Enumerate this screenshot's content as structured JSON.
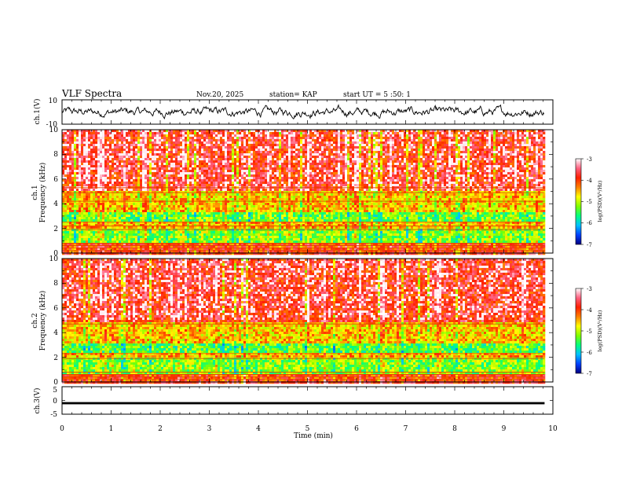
{
  "header": {
    "title": "VLF Spectra",
    "date": "Nov.20, 2025",
    "station": "station= KAP",
    "start": "start  UT =  5 :50: 1"
  },
  "chart_data": {
    "type": "heatmap",
    "time_axis": {
      "label": "Time (min)",
      "range": [
        0,
        10
      ],
      "ticks": [
        "0",
        "1",
        "2",
        "3",
        "4",
        "5",
        "6",
        "7",
        "8",
        "9",
        "10"
      ],
      "data_end": 9.83
    },
    "waveform_ch1": {
      "ylabel": "ch.1(V)",
      "ylim": [
        -10,
        10
      ],
      "tick_labels": [
        "10",
        "-10"
      ],
      "typical_range": [
        -6,
        6
      ]
    },
    "spectrogram_ch1": {
      "ylabel_line1": "ch.1",
      "ylabel_line2": "Frequency (kHz)",
      "ylim": [
        0,
        10
      ],
      "tick_labels": [
        "0",
        "2",
        "4",
        "6",
        "8",
        "10"
      ],
      "horizontal_lines_khz": [
        0.2,
        0.4,
        0.6,
        0.8,
        1.9,
        2.2,
        2.5,
        4.2,
        4.9,
        5.3
      ],
      "dominant_levels": [
        {
          "from_khz": 0,
          "to_khz": 0.9,
          "log_psd": -4.0
        },
        {
          "from_khz": 0.9,
          "to_khz": 2.0,
          "log_psd": -5.2
        },
        {
          "from_khz": 2.0,
          "to_khz": 2.5,
          "log_psd": -4.5
        },
        {
          "from_khz": 2.5,
          "to_khz": 3.4,
          "log_psd": -5.3
        },
        {
          "from_khz": 3.4,
          "to_khz": 5.0,
          "log_psd": -4.6
        },
        {
          "from_khz": 5.0,
          "to_khz": 10.0,
          "log_psd": -3.8
        }
      ]
    },
    "spectrogram_ch2": {
      "ylabel_line1": "ch.2",
      "ylabel_line2": "Frequency (kHz)",
      "ylim": [
        0,
        10
      ],
      "tick_labels": [
        "0",
        "2",
        "4",
        "6",
        "8",
        "10"
      ],
      "horizontal_lines_khz": [
        0.2,
        0.4,
        0.6,
        0.8,
        1.9,
        2.3,
        4.7
      ],
      "dominant_levels": [
        {
          "from_khz": 0,
          "to_khz": 0.6,
          "log_psd": -4.0
        },
        {
          "from_khz": 0.6,
          "to_khz": 1.9,
          "log_psd": -5.2
        },
        {
          "from_khz": 1.9,
          "to_khz": 2.3,
          "log_psd": -4.5
        },
        {
          "from_khz": 2.3,
          "to_khz": 3.1,
          "log_psd": -5.4
        },
        {
          "from_khz": 3.1,
          "to_khz": 4.8,
          "log_psd": -4.6
        },
        {
          "from_khz": 4.8,
          "to_khz": 10.0,
          "log_psd": -3.8
        }
      ]
    },
    "colorbar": {
      "label": "log(PSD)(V²/Hz)",
      "range": [
        -7,
        -3
      ],
      "tick_labels": [
        "-3",
        "-4",
        "-5",
        "-6",
        "-7"
      ],
      "colormap": [
        "#000080",
        "#0040ff",
        "#00c0ff",
        "#00ff80",
        "#7fff00",
        "#ffff00",
        "#ff8000",
        "#ff2000",
        "#ff6080",
        "#ffffff"
      ]
    },
    "waveform_ch3": {
      "ylabel": "ch.3(V)",
      "ylim": [
        -5,
        5
      ],
      "tick_labels": [
        "5",
        "0",
        "-5"
      ],
      "level": -1.0,
      "band_thickness": 0.4
    }
  }
}
